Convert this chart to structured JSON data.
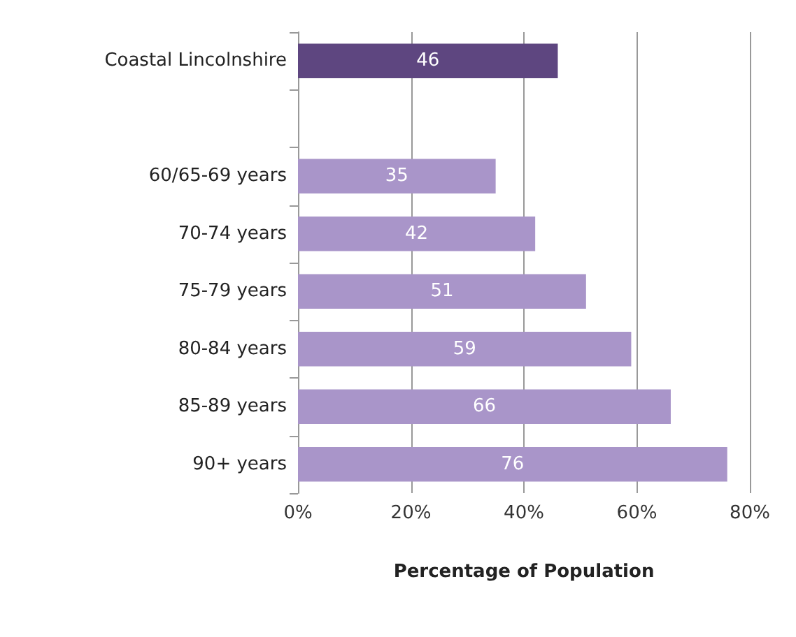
{
  "chart_data": {
    "type": "bar",
    "orientation": "horizontal",
    "xlabel": "Percentage of Population",
    "categories": [
      "Coastal Lincolnshire",
      null,
      "60/65-69 years",
      "70-74 years",
      "75-79 years",
      "80-84 years",
      "85-89 years",
      "90+ years"
    ],
    "values": [
      46,
      null,
      35,
      42,
      51,
      59,
      66,
      76
    ],
    "colors": [
      "#5e4680",
      "#a995c9",
      "#a995c9",
      "#a995c9",
      "#a995c9",
      "#a995c9",
      "#a995c9",
      "#a995c9"
    ],
    "xlim": [
      0,
      80
    ],
    "xticks": [
      {
        "value": 0,
        "label": "0%"
      },
      {
        "value": 20,
        "label": "20%"
      },
      {
        "value": 40,
        "label": "40%"
      },
      {
        "value": 60,
        "label": "60%"
      },
      {
        "value": 80,
        "label": "80%"
      }
    ],
    "grid": "x",
    "data_labels": true
  }
}
